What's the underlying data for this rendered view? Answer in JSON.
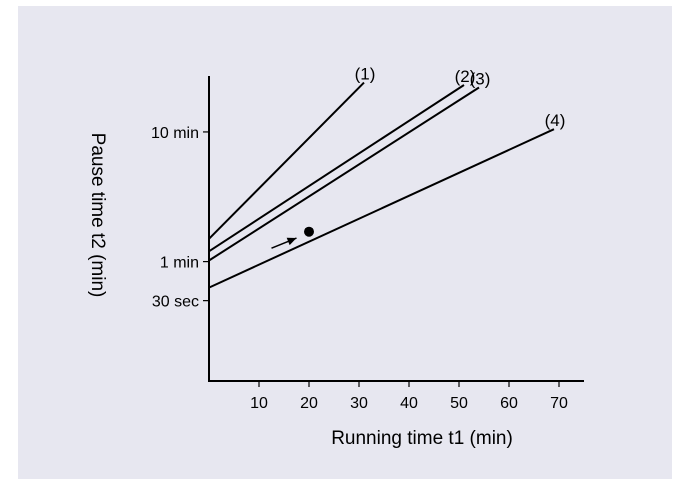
{
  "panel_color": "#e7e7f0",
  "ink_color": "#000000",
  "chart_data": {
    "type": "line",
    "xlabel": "Running time t1 (min)",
    "ylabel": "Pause time t2 (min)",
    "xlim": [
      0,
      75
    ],
    "x_ticks": [
      {
        "value": 10,
        "label": "10"
      },
      {
        "value": 20,
        "label": "20"
      },
      {
        "value": 30,
        "label": "30"
      },
      {
        "value": 40,
        "label": "40"
      },
      {
        "value": 50,
        "label": "50"
      },
      {
        "value": 60,
        "label": "60"
      },
      {
        "value": 70,
        "label": "70"
      }
    ],
    "y_scale": "log",
    "ylim": [
      0.12,
      27
    ],
    "y_ticks": [
      {
        "value": 10,
        "label": "10 min"
      },
      {
        "value": 1,
        "label": "1 min"
      },
      {
        "value": 0.5,
        "label": "30 sec"
      }
    ],
    "grid": false,
    "legend": "none",
    "series": [
      {
        "name": "(1)",
        "x": [
          0,
          31
        ],
        "y": [
          1.5,
          24
        ]
      },
      {
        "name": "(2)",
        "x": [
          0,
          51
        ],
        "y": [
          1.2,
          23
        ]
      },
      {
        "name": "(3)",
        "x": [
          0,
          54
        ],
        "y": [
          1.02,
          22
        ]
      },
      {
        "name": "(4)",
        "x": [
          0,
          69
        ],
        "y": [
          0.63,
          10.5
        ]
      }
    ],
    "annotations": [
      {
        "type": "point",
        "x": 20,
        "y": 1.7
      },
      {
        "type": "arrow",
        "from": [
          12.5,
          1.27
        ],
        "to": [
          17.5,
          1.52
        ]
      }
    ]
  }
}
